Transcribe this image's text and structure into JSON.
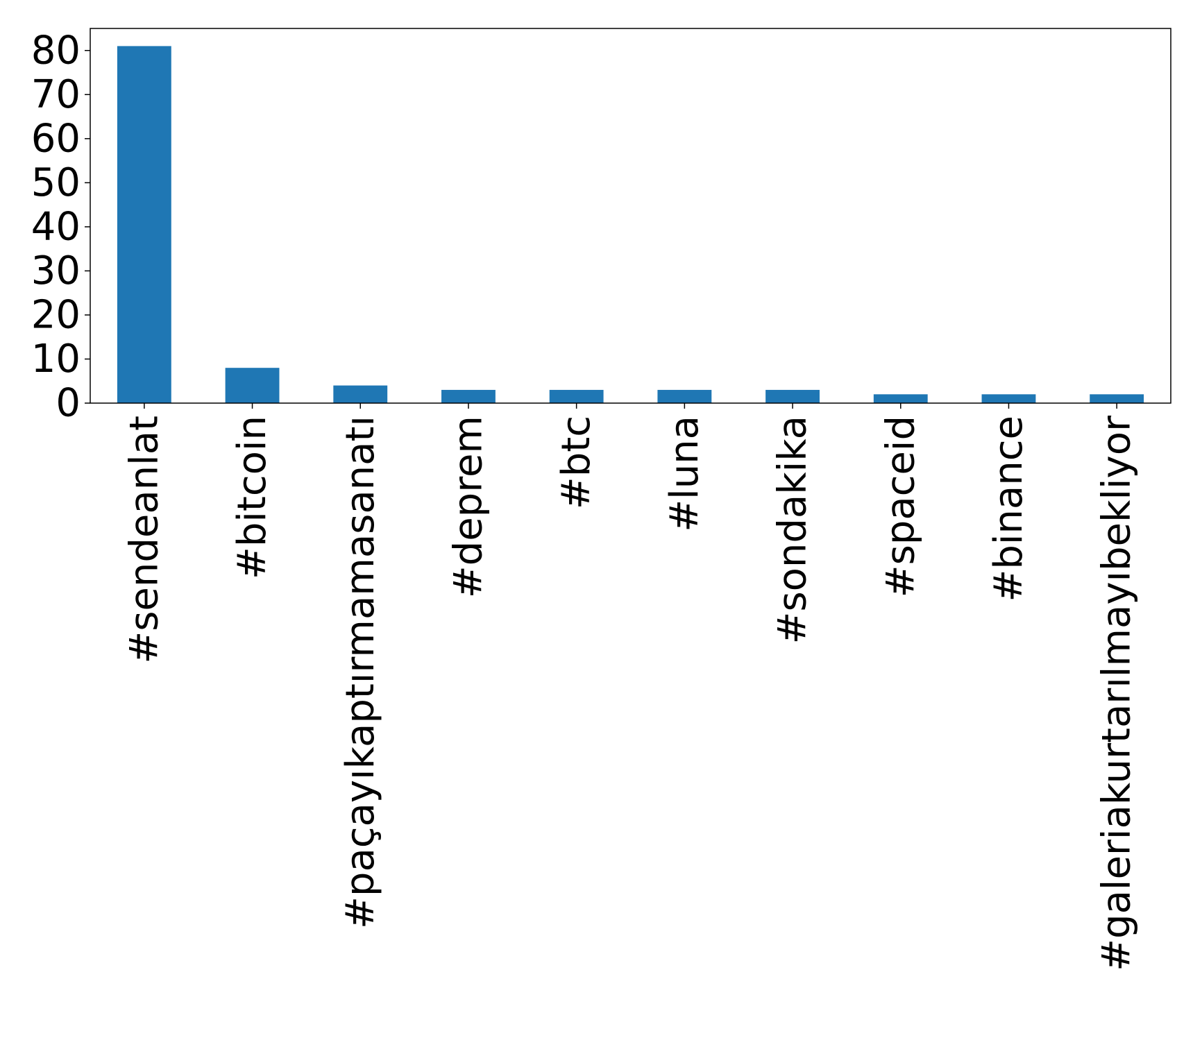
{
  "chart_data": {
    "type": "bar",
    "title": "",
    "xlabel": "",
    "ylabel": "",
    "categories": [
      "#sendeanlat",
      "#bitcoin",
      "#paçayıkaptırmamasanatı",
      "#deprem",
      "#btc",
      "#luna",
      "#sondakika",
      "#spaceid",
      "#binance",
      "#galeriakurtarılmayıbekliyor"
    ],
    "values": [
      81,
      8,
      4,
      3,
      3,
      3,
      3,
      2,
      2,
      2
    ],
    "ylim": [
      0,
      85
    ],
    "yticks": [
      0,
      10,
      20,
      30,
      40,
      50,
      60,
      70,
      80
    ],
    "bar_color": "#1f77b4",
    "grid": false,
    "legend": false
  }
}
